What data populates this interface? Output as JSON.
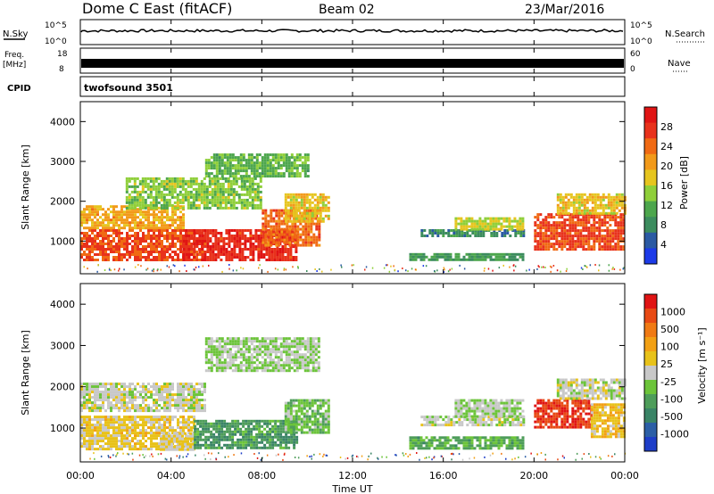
{
  "header": {
    "title": "Dome C East (fitACF)",
    "beam": "Beam 02",
    "date": "23/Mar/2016"
  },
  "status_panels": {
    "nsky": {
      "label": "N.Sky",
      "ticks": [
        "10^5",
        "10^0"
      ]
    },
    "nsearch": {
      "label": "N.Search",
      "ticks": [
        "10^5",
        "10^0"
      ]
    },
    "freq": {
      "label_lines": [
        "Freq.",
        "[MHz]"
      ],
      "ticks": [
        "18",
        "8"
      ]
    },
    "nave": {
      "label": "Nave",
      "ticks": [
        "60",
        "0"
      ]
    },
    "cpid": {
      "label": "CPID",
      "value": "twofsound 3501"
    }
  },
  "time_axis": {
    "label": "Time UT",
    "ticks": [
      "00:00",
      "04:00",
      "08:00",
      "12:00",
      "16:00",
      "20:00",
      "00:00"
    ]
  },
  "colors": {
    "power_scale": [
      "#1d3be8",
      "#2b5aa3",
      "#3c8c5e",
      "#4da64d",
      "#8fcf3a",
      "#e6c51f",
      "#f29a1a",
      "#f06a14",
      "#e8321c",
      "#e01414"
    ],
    "velocity_scale": [
      "#1e3ec8",
      "#2c5fa6",
      "#3a8466",
      "#4e9d5a",
      "#6cc43a",
      "#c8c8c8",
      "#e8c21a",
      "#f2a014",
      "#f07a14",
      "#e84a14",
      "#e01414"
    ]
  },
  "chart_data": [
    {
      "type": "heatmap",
      "name": "power",
      "ylabel": "Slant Range [km]",
      "xlabel": "",
      "ylim": [
        180,
        4500
      ],
      "yticks": [
        "1000",
        "2000",
        "3000",
        "4000"
      ],
      "colorbar": {
        "label": "Power [dB]",
        "ticks": [
          "28",
          "24",
          "20",
          "16",
          "12",
          "8",
          "4"
        ],
        "range": [
          0,
          32
        ]
      },
      "regions": [
        {
          "t0": 0.0,
          "t1": 5.5,
          "r0": 500,
          "r1": 1300,
          "value": 26
        },
        {
          "t0": 0.0,
          "t1": 4.5,
          "r0": 1300,
          "r1": 1900,
          "value": 20
        },
        {
          "t0": 4.5,
          "t1": 9.5,
          "r0": 500,
          "r1": 1300,
          "value": 28
        },
        {
          "t0": 2.0,
          "t1": 8.0,
          "r0": 1800,
          "r1": 2600,
          "value": 14
        },
        {
          "t0": 8.0,
          "t1": 10.5,
          "r0": 900,
          "r1": 1800,
          "value": 24
        },
        {
          "t0": 9.0,
          "t1": 11.0,
          "r0": 1500,
          "r1": 2200,
          "value": 18
        },
        {
          "t0": 5.5,
          "t1": 10.0,
          "r0": 2600,
          "r1": 3200,
          "value": 12
        },
        {
          "t0": 14.5,
          "t1": 19.5,
          "r0": 500,
          "r1": 700,
          "value": 10
        },
        {
          "t0": 15.0,
          "t1": 19.5,
          "r0": 1100,
          "r1": 1300,
          "value": 8
        },
        {
          "t0": 16.5,
          "t1": 19.5,
          "r0": 1300,
          "r1": 1600,
          "value": 16
        },
        {
          "t0": 20.0,
          "t1": 24.0,
          "r0": 800,
          "r1": 1700,
          "value": 26
        },
        {
          "t0": 21.0,
          "t1": 24.0,
          "r0": 1700,
          "r1": 2200,
          "value": 18
        }
      ]
    },
    {
      "type": "heatmap",
      "name": "velocity",
      "ylabel": "Slant Range [km]",
      "xlabel": "Time UT",
      "ylim": [
        180,
        4500
      ],
      "yticks": [
        "1000",
        "2000",
        "3000",
        "4000"
      ],
      "colorbar": {
        "label": "Velocity [m s⁻¹]",
        "ticks": [
          "1000",
          "500",
          "100",
          "25",
          "-25",
          "-100",
          "-500",
          "-1000"
        ],
        "range": [
          -1000,
          1000
        ]
      },
      "regions": [
        {
          "t0": 0.0,
          "t1": 5.0,
          "r0": 500,
          "r1": 1300,
          "value": 150
        },
        {
          "t0": 0.0,
          "t1": 5.5,
          "r0": 1400,
          "r1": 2100,
          "value": 0
        },
        {
          "t0": 3.5,
          "t1": 5.0,
          "r0": 500,
          "r1": 900,
          "value": 80
        },
        {
          "t0": 5.0,
          "t1": 9.5,
          "r0": 500,
          "r1": 1200,
          "value": -400
        },
        {
          "t0": 9.0,
          "t1": 11.0,
          "r0": 900,
          "r1": 1700,
          "value": -200
        },
        {
          "t0": 5.5,
          "t1": 10.5,
          "r0": 2400,
          "r1": 3200,
          "value": -100
        },
        {
          "t0": 14.5,
          "t1": 19.5,
          "r0": 500,
          "r1": 800,
          "value": -300
        },
        {
          "t0": 15.0,
          "t1": 19.5,
          "r0": 1100,
          "r1": 1300,
          "value": 0
        },
        {
          "t0": 16.5,
          "t1": 19.5,
          "r0": 1300,
          "r1": 1700,
          "value": -80
        },
        {
          "t0": 20.0,
          "t1": 22.5,
          "r0": 1000,
          "r1": 1700,
          "value": 800
        },
        {
          "t0": 22.5,
          "t1": 24.0,
          "r0": 800,
          "r1": 1600,
          "value": 200
        },
        {
          "t0": 21.0,
          "t1": 24.0,
          "r0": 1700,
          "r1": 2200,
          "value": 0
        }
      ]
    }
  ]
}
